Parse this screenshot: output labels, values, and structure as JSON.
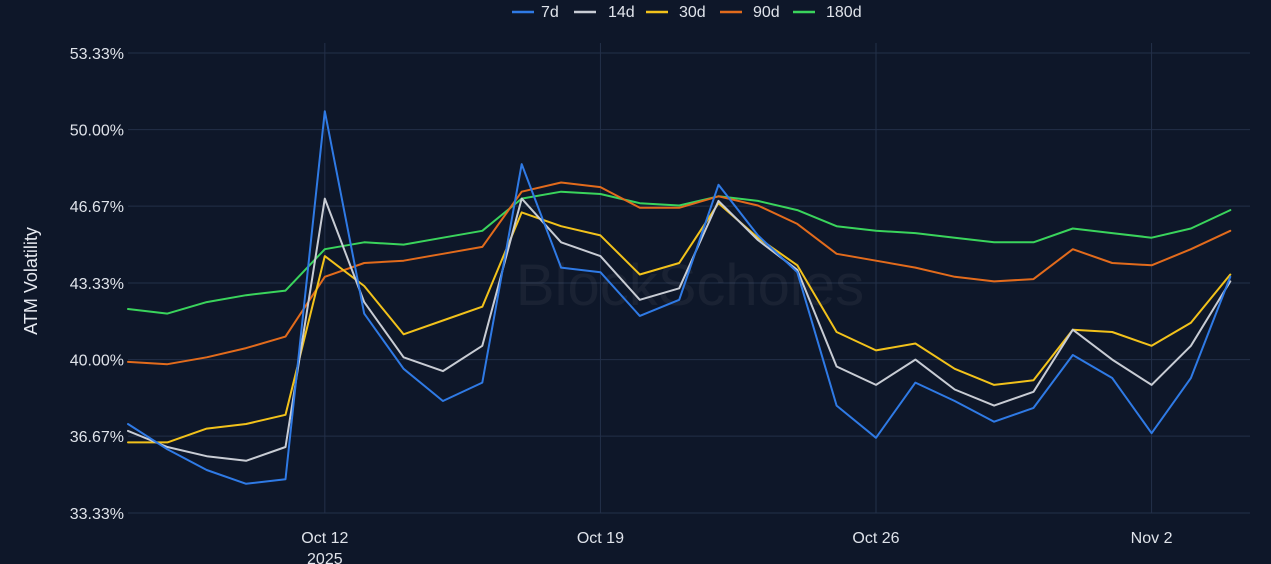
{
  "watermark": "BlockScholes",
  "colors": {
    "background": "#0e1729",
    "grid": "#233049"
  },
  "chart_data": {
    "type": "line",
    "title": "",
    "xlabel": "",
    "ylabel": "ATM Volatility",
    "legend_position": "top-center",
    "grid": true,
    "y_ticks": [
      "33.33%",
      "36.67%",
      "40.00%",
      "43.33%",
      "46.67%",
      "50.00%",
      "53.33%"
    ],
    "y_tick_values": [
      33.33,
      36.67,
      40.0,
      43.33,
      46.67,
      50.0,
      53.33
    ],
    "ylim": [
      33.33,
      53.33
    ],
    "xlim": [
      "2025-10-07",
      "2025-11-04"
    ],
    "x_ticks": [
      {
        "date": "2025-10-12",
        "label": "Oct 12",
        "sublabel": "2025"
      },
      {
        "date": "2025-10-19",
        "label": "Oct 19",
        "sublabel": ""
      },
      {
        "date": "2025-10-26",
        "label": "Oct 26",
        "sublabel": ""
      },
      {
        "date": "2025-11-02",
        "label": "Nov 2",
        "sublabel": ""
      }
    ],
    "x": [
      "2025-10-07",
      "2025-10-08",
      "2025-10-09",
      "2025-10-10",
      "2025-10-11",
      "2025-10-12",
      "2025-10-13",
      "2025-10-14",
      "2025-10-15",
      "2025-10-16",
      "2025-10-17",
      "2025-10-18",
      "2025-10-19",
      "2025-10-20",
      "2025-10-21",
      "2025-10-22",
      "2025-10-23",
      "2025-10-24",
      "2025-10-25",
      "2025-10-26",
      "2025-10-27",
      "2025-10-28",
      "2025-10-29",
      "2025-10-30",
      "2025-10-31",
      "2025-11-01",
      "2025-11-02",
      "2025-11-03",
      "2025-11-04"
    ],
    "series": [
      {
        "name": "7d",
        "color": "#2f7ae5",
        "values": [
          37.2,
          36.1,
          35.2,
          34.6,
          34.8,
          50.8,
          42.0,
          39.6,
          38.2,
          39.0,
          48.5,
          44.0,
          43.8,
          41.9,
          42.6,
          47.6,
          45.4,
          43.8,
          38.0,
          36.6,
          39.0,
          38.2,
          37.3,
          37.9,
          40.2,
          39.2,
          36.8,
          39.2,
          43.6
        ]
      },
      {
        "name": "14d",
        "color": "#c8ccd4",
        "values": [
          36.9,
          36.2,
          35.8,
          35.6,
          36.2,
          47.0,
          42.5,
          40.1,
          39.5,
          40.6,
          47.0,
          45.1,
          44.5,
          42.6,
          43.1,
          46.9,
          45.2,
          43.9,
          39.7,
          38.9,
          40.0,
          38.7,
          38.0,
          38.6,
          41.3,
          40.0,
          38.9,
          40.6,
          43.4
        ]
      },
      {
        "name": "30d",
        "color": "#f2c21b",
        "values": [
          36.4,
          36.4,
          37.0,
          37.2,
          37.6,
          44.5,
          43.2,
          41.1,
          41.7,
          42.3,
          46.4,
          45.8,
          45.4,
          43.7,
          44.2,
          46.8,
          45.3,
          44.1,
          41.2,
          40.4,
          40.7,
          39.6,
          38.9,
          39.1,
          41.3,
          41.2,
          40.6,
          41.6,
          43.7
        ]
      },
      {
        "name": "90d",
        "color": "#e26b1c",
        "values": [
          39.9,
          39.8,
          40.1,
          40.5,
          41.0,
          43.6,
          44.2,
          44.3,
          44.6,
          44.9,
          47.3,
          47.7,
          47.5,
          46.6,
          46.6,
          47.1,
          46.7,
          45.9,
          44.6,
          44.3,
          44.0,
          43.6,
          43.4,
          43.5,
          44.8,
          44.2,
          44.1,
          44.8,
          45.6
        ]
      },
      {
        "name": "180d",
        "color": "#3ad45c",
        "values": [
          42.2,
          42.0,
          42.5,
          42.8,
          43.0,
          44.8,
          45.1,
          45.0,
          45.3,
          45.6,
          47.0,
          47.3,
          47.2,
          46.8,
          46.7,
          47.1,
          46.9,
          46.5,
          45.8,
          45.6,
          45.5,
          45.3,
          45.1,
          45.1,
          45.7,
          45.5,
          45.3,
          45.7,
          46.5
        ]
      }
    ]
  }
}
